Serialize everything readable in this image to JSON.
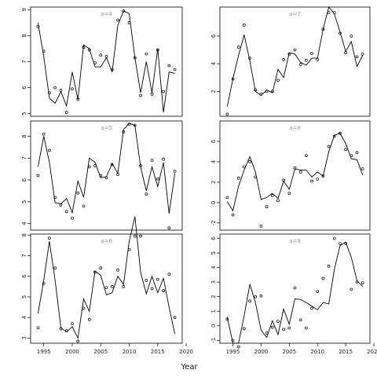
{
  "figure": {
    "xlabel": "Year",
    "line_color": "#000000",
    "point_color": "#000000",
    "frame_color": "#000000",
    "label_color": "#999999"
  },
  "chart_data": [
    {
      "type": "line",
      "label": "a=4",
      "xlim": [
        1992.7,
        2019.3
      ],
      "ylim": [
        4.9,
        9.1
      ],
      "yticks": [
        5,
        6,
        7,
        8,
        9
      ],
      "x_ticks_shown": false,
      "series": [
        {
          "x": [
            1994,
            1995,
            1996,
            1997,
            1998,
            1999,
            2000,
            2001,
            2002,
            2003,
            2004,
            2005,
            2006,
            2007,
            2008,
            2009,
            2010,
            2011,
            2012,
            2013,
            2014,
            2015,
            2016,
            2017,
            2018
          ],
          "values": [
            8.5,
            7.2,
            5.6,
            5.4,
            5.85,
            5.3,
            6.6,
            5.55,
            7.65,
            7.5,
            6.8,
            6.8,
            7.15,
            6.6,
            8.4,
            8.95,
            8.85,
            7.15,
            5.8,
            7.0,
            5.8,
            7.5,
            5.05,
            6.6,
            6.55
          ]
        },
        {
          "x": [
            1994,
            1995,
            1996,
            1997,
            1998,
            1999,
            2000,
            2001,
            2002,
            2003,
            2004,
            2005,
            2006,
            2007,
            2008,
            2009,
            2010,
            2011,
            2012,
            2013,
            2014,
            2015,
            2016,
            2017,
            2018
          ],
          "values": [
            8.35,
            7.4,
            5.8,
            6.0,
            5.9,
            5.05,
            5.95,
            5.55,
            7.55,
            7.45,
            6.95,
            7.25,
            7.2,
            6.7,
            8.6,
            8.95,
            8.5,
            7.15,
            5.7,
            7.3,
            5.75,
            7.45,
            5.85,
            6.85,
            6.7
          ]
        }
      ]
    },
    {
      "type": "line",
      "label": "a=7",
      "xlim": [
        1992.7,
        2019.3
      ],
      "ylim": [
        0.2,
        8.1
      ],
      "yticks": [
        2,
        4,
        6
      ],
      "x_ticks_shown": false,
      "series": [
        {
          "x": [
            1994,
            1995,
            1996,
            1997,
            1998,
            1999,
            2000,
            2001,
            2002,
            2003,
            2004,
            2005,
            2006,
            2007,
            2008,
            2009,
            2010,
            2011,
            2012,
            2013,
            2014,
            2015,
            2016,
            2017,
            2018
          ],
          "values": [
            0.9,
            2.9,
            4.6,
            6.1,
            4.2,
            2.0,
            1.7,
            2.1,
            1.9,
            3.6,
            3.0,
            4.8,
            4.7,
            4.1,
            3.9,
            4.4,
            4.4,
            6.5,
            8.1,
            7.6,
            6.3,
            4.9,
            5.6,
            3.8,
            4.6
          ]
        },
        {
          "x": [
            1994,
            1995,
            1996,
            1997,
            1998,
            1999,
            2000,
            2001,
            2002,
            2003,
            2004,
            2005,
            2006,
            2007,
            2008,
            2009,
            2010,
            2011,
            2012,
            2013,
            2014,
            2015,
            2016,
            2017,
            2018
          ],
          "values": [
            0.35,
            2.9,
            5.2,
            6.8,
            4.4,
            2.1,
            1.8,
            2.0,
            2.0,
            2.8,
            4.3,
            4.7,
            5.0,
            3.95,
            4.25,
            4.75,
            4.3,
            6.5,
            7.7,
            7.7,
            6.2,
            4.8,
            6.0,
            4.5,
            4.7
          ]
        }
      ]
    },
    {
      "type": "line",
      "label": "a=5",
      "xlim": [
        1992.7,
        2019.3
      ],
      "ylim": [
        3.7,
        8.7
      ],
      "yticks": [
        4,
        5,
        6,
        7,
        8
      ],
      "x_ticks_shown": false,
      "series": [
        {
          "x": [
            1994,
            1995,
            1996,
            1997,
            1998,
            1999,
            2000,
            2001,
            2002,
            2003,
            2004,
            2005,
            2006,
            2007,
            2008,
            2009,
            2010,
            2011,
            2012,
            2013,
            2014,
            2015,
            2016,
            2017,
            2018
          ],
          "values": [
            6.6,
            8.0,
            6.8,
            4.95,
            4.9,
            5.15,
            4.5,
            5.95,
            5.2,
            7.0,
            6.8,
            6.1,
            6.15,
            6.75,
            6.3,
            8.3,
            8.6,
            8.5,
            6.6,
            5.5,
            6.6,
            5.7,
            6.8,
            4.45,
            6.3
          ]
        },
        {
          "x": [
            1994,
            1995,
            1996,
            1997,
            1998,
            1999,
            2000,
            2001,
            2002,
            2003,
            2004,
            2005,
            2006,
            2007,
            2008,
            2009,
            2010,
            2011,
            2012,
            2013,
            2014,
            2015,
            2016,
            2017,
            2018
          ],
          "values": [
            6.2,
            8.1,
            7.35,
            5.2,
            4.85,
            4.55,
            4.25,
            5.4,
            4.8,
            6.6,
            6.65,
            6.2,
            6.1,
            6.7,
            6.25,
            8.2,
            8.55,
            8.5,
            6.65,
            5.35,
            6.9,
            6.05,
            6.95,
            3.8,
            6.4
          ]
        }
      ]
    },
    {
      "type": "line",
      "label": "a=8",
      "xlim": [
        1992.7,
        2019.3
      ],
      "ylim": [
        -2.7,
        8.0
      ],
      "yticks": [
        -2,
        0,
        2,
        4,
        6
      ],
      "x_ticks_shown": false,
      "series": [
        {
          "x": [
            1994,
            1995,
            1996,
            1997,
            1998,
            1999,
            2000,
            2001,
            2002,
            2003,
            2004,
            2005,
            2006,
            2007,
            2008,
            2009,
            2010,
            2011,
            2012,
            2013,
            2014,
            2015,
            2016,
            2017,
            2018
          ],
          "values": [
            0.1,
            -0.8,
            1.6,
            3.2,
            4.5,
            3.0,
            0.3,
            0.5,
            0.9,
            0.4,
            2.1,
            1.3,
            3.3,
            3.2,
            3.2,
            2.5,
            3.0,
            2.6,
            5.0,
            6.6,
            6.8,
            5.8,
            4.3,
            4.2,
            2.7
          ]
        },
        {
          "x": [
            1994,
            1995,
            1996,
            1997,
            1998,
            1999,
            2000,
            2001,
            2002,
            2003,
            2004,
            2005,
            2006,
            2007,
            2008,
            2009,
            2010,
            2011,
            2012,
            2013,
            2014,
            2015,
            2016,
            2017,
            2018
          ],
          "values": [
            0.5,
            -1.2,
            2.4,
            3.5,
            4.0,
            2.5,
            -2.3,
            -0.4,
            0.7,
            0.2,
            2.2,
            0.9,
            3.4,
            3.0,
            4.6,
            2.1,
            2.3,
            2.6,
            5.5,
            6.5,
            6.8,
            5.2,
            4.6,
            4.9,
            3.3
          ]
        }
      ]
    },
    {
      "type": "line",
      "label": "a=6",
      "xlim": [
        1992.7,
        2019.3
      ],
      "ylim": [
        2.75,
        8.05
      ],
      "yticks": [
        3,
        4,
        5,
        6,
        7,
        8
      ],
      "x_ticks_shown": true,
      "series": [
        {
          "x": [
            1994,
            1995,
            1996,
            1997,
            1998,
            1999,
            2000,
            2001,
            2002,
            2003,
            2004,
            2005,
            2006,
            2007,
            2008,
            2009,
            2010,
            2011,
            2012,
            2013,
            2014,
            2015,
            2016,
            2017,
            2018
          ],
          "values": [
            4.2,
            5.8,
            7.7,
            5.8,
            3.5,
            3.3,
            3.55,
            3.0,
            4.9,
            4.3,
            6.25,
            6.05,
            5.1,
            5.2,
            6.0,
            5.6,
            7.7,
            8.9,
            6.2,
            5.15,
            6.0,
            5.2,
            5.9,
            4.5,
            3.2
          ]
        },
        {
          "x": [
            1994,
            1995,
            1996,
            1997,
            1998,
            1999,
            2000,
            2001,
            2002,
            2003,
            2004,
            2005,
            2006,
            2007,
            2008,
            2009,
            2010,
            2011,
            2012,
            2013,
            2014,
            2015,
            2016,
            2017,
            2018
          ],
          "values": [
            3.5,
            5.65,
            7.85,
            6.4,
            3.45,
            3.35,
            3.7,
            2.85,
            4.45,
            3.9,
            6.2,
            6.4,
            5.45,
            5.5,
            6.3,
            5.5,
            7.3,
            7.95,
            7.95,
            5.8,
            5.4,
            5.85,
            5.3,
            6.1,
            4.0
          ]
        }
      ]
    },
    {
      "type": "line",
      "label": "a=9",
      "xlim": [
        1992.7,
        2019.3
      ],
      "ylim": [
        -1.2,
        6.3
      ],
      "yticks": [
        -1,
        0,
        1,
        2,
        3,
        4,
        5,
        6
      ],
      "x_ticks_shown": true,
      "series": [
        {
          "x": [
            1994,
            1995,
            1996,
            1997,
            1998,
            1999,
            2000,
            2001,
            2002,
            2003,
            2004,
            2005,
            2006,
            2007,
            2008,
            2009,
            2010,
            2011,
            2012,
            2013,
            2014,
            2015,
            2016,
            2017,
            2018
          ],
          "values": [
            0.6,
            -1.2,
            -1.2,
            0.7,
            2.85,
            1.6,
            -0.3,
            -0.8,
            0.35,
            -0.6,
            1.15,
            0.1,
            1.85,
            1.8,
            1.6,
            1.35,
            1.1,
            1.6,
            1.5,
            3.9,
            5.5,
            5.75,
            4.7,
            3.1,
            2.7
          ]
        },
        {
          "x": [
            1994,
            1995,
            1996,
            1997,
            1998,
            1999,
            2000,
            2001,
            2002,
            2003,
            2004,
            2005,
            2006,
            2007,
            2008,
            2009,
            2010,
            2011,
            2012,
            2013,
            2014,
            2015,
            2016,
            2017,
            2018
          ],
          "values": [
            0.45,
            -1.0,
            -1.45,
            -0.2,
            1.7,
            2.0,
            2.05,
            -0.5,
            -0.1,
            0.3,
            -0.25,
            -0.15,
            2.6,
            0.4,
            -0.15,
            1.2,
            2.35,
            3.25,
            4.1,
            6.0,
            5.65,
            5.65,
            2.5,
            3.0,
            2.95
          ]
        }
      ]
    }
  ]
}
